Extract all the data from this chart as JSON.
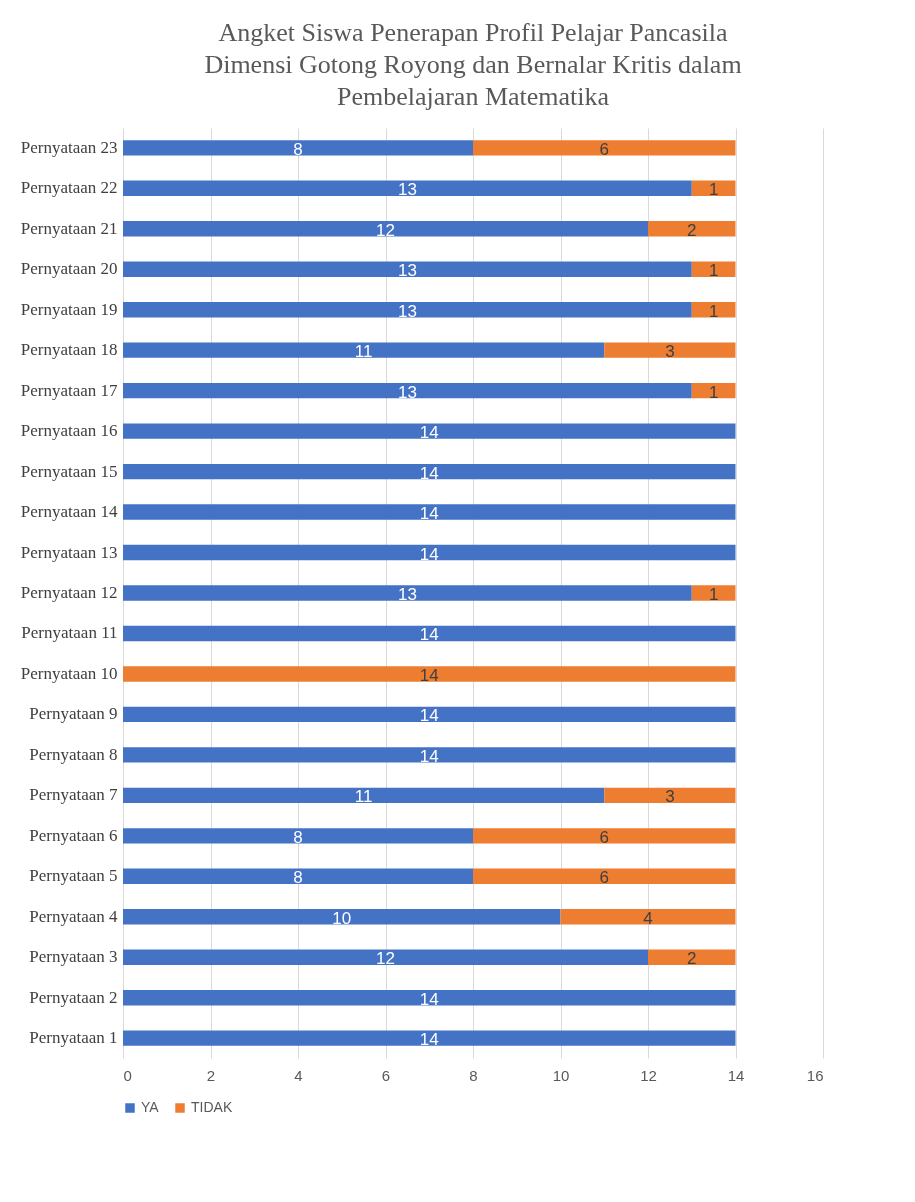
{
  "chart_data": {
    "type": "bar",
    "orientation": "horizontal",
    "stacked": true,
    "title": "Angket Siswa Penerapan Profil Pelajar Pancasila Dimensi Gotong Royong dan Bernalar Kritis dalam Pembelajaran Matematika",
    "categories": [
      "Pernyataan 23",
      "Pernyataan 22",
      "Pernyataan 21",
      "Pernyataan 20",
      "Pernyataan 19",
      "Pernyataan 18",
      "Pernyataan 17",
      "Pernyataan 16",
      "Pernyataan 15",
      "Pernyataan 14",
      "Pernyataan 13",
      "Pernyataan 12",
      "Pernyataan 11",
      "Pernyataan 10",
      "Pernyataan 9",
      "Pernyataan 8",
      "Pernyataan 7",
      "Pernyataan 6",
      "Pernyataan 5",
      "Pernyataan 4",
      "Pernyataan 3",
      "Pernyataan 2",
      "Pernyataan 1"
    ],
    "series": [
      {
        "name": "YA",
        "color": "#4472c4",
        "values": [
          8,
          13,
          12,
          13,
          13,
          11,
          13,
          14,
          14,
          14,
          14,
          13,
          14,
          null,
          14,
          14,
          11,
          8,
          8,
          10,
          12,
          14,
          14
        ]
      },
      {
        "name": "TIDAK",
        "color": "#ed7d31",
        "values": [
          6,
          1,
          2,
          1,
          1,
          3,
          1,
          null,
          null,
          null,
          null,
          1,
          null,
          14,
          null,
          null,
          3,
          6,
          6,
          4,
          2,
          null,
          null
        ]
      }
    ],
    "xlim": [
      0,
      16
    ],
    "xticks": [
      0,
      2,
      4,
      6,
      8,
      10,
      12,
      14,
      16
    ],
    "grid": "x",
    "legend": "bottom",
    "data_labels": true
  }
}
